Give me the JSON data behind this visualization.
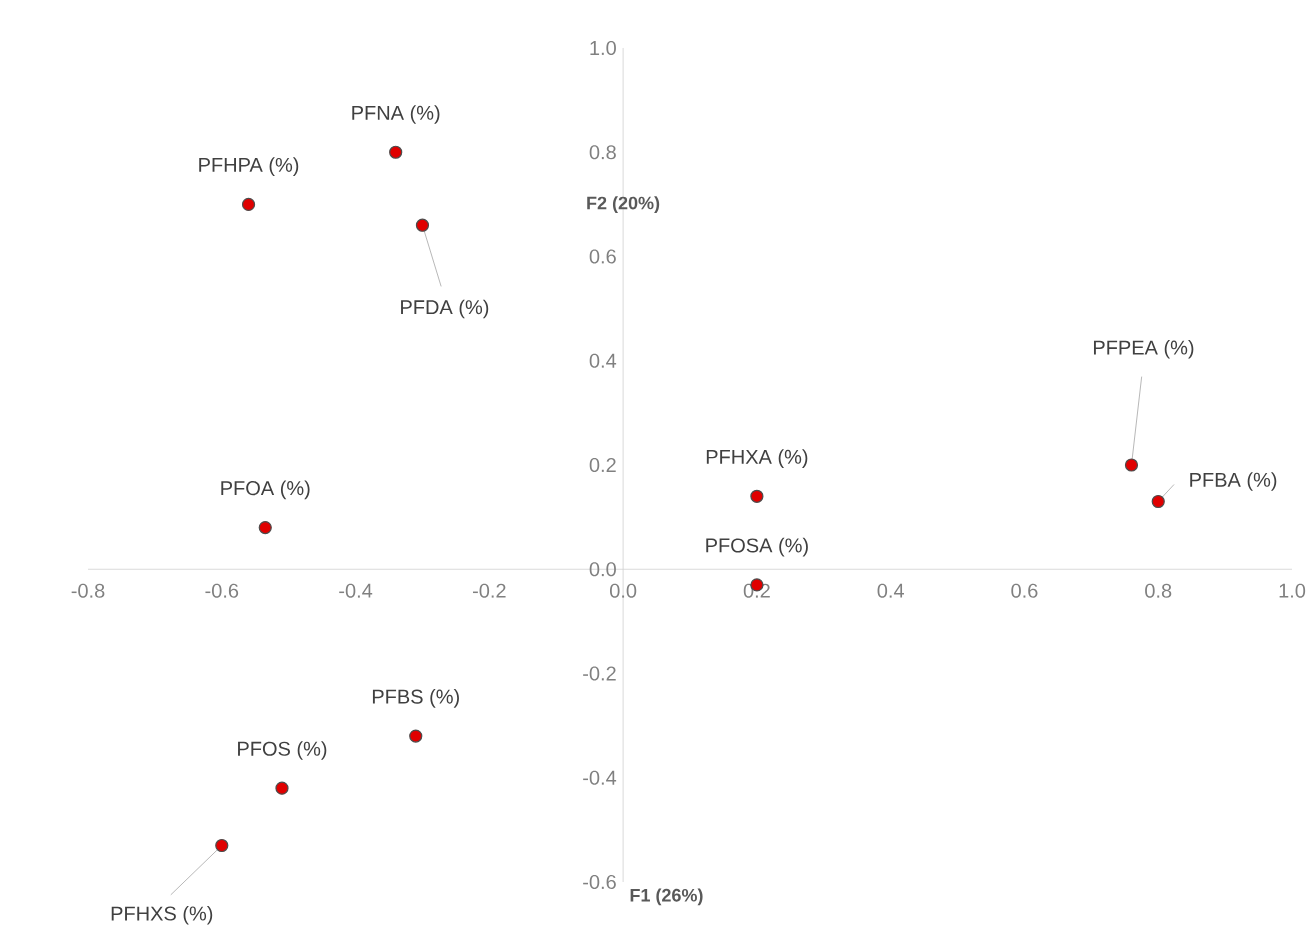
{
  "chart_data": {
    "type": "scatter",
    "xlabel": "F1 (26%)",
    "ylabel": "F2 (20%)",
    "xlim": [
      -0.8,
      1.0
    ],
    "ylim": [
      -0.6,
      1.0
    ],
    "xticks": [
      -0.8,
      -0.6,
      -0.4,
      -0.2,
      {
        "value": 0,
        "label": "0.0"
      },
      0.2,
      0.4,
      0.6,
      0.8,
      {
        "value": 1,
        "label": "1.0"
      }
    ],
    "yticks": [
      -0.6,
      -0.4,
      -0.2,
      {
        "value": 0,
        "label": "0.0"
      },
      0.2,
      0.4,
      0.6,
      0.8,
      {
        "value": 1,
        "label": "1.0"
      }
    ],
    "marker": "circle",
    "series": [
      {
        "name": "PFNA (%)",
        "color": "#e00000",
        "x": [
          -0.34
        ],
        "values": [
          0.8
        ]
      },
      {
        "name": "PFHPA (%)",
        "color": "#e00000",
        "x": [
          -0.56
        ],
        "values": [
          0.7
        ]
      },
      {
        "name": "PFDA (%)",
        "color": "#e00000",
        "x": [
          -0.3
        ],
        "values": [
          0.66
        ]
      },
      {
        "name": "PFOA (%)",
        "color": "#e00000",
        "x": [
          -0.535
        ],
        "values": [
          0.08
        ]
      },
      {
        "name": "PFHXA (%)",
        "color": "#e00000",
        "x": [
          0.2
        ],
        "values": [
          0.14
        ]
      },
      {
        "name": "PFOSA (%)",
        "color": "#e00000",
        "x": [
          0.2
        ],
        "values": [
          -0.03
        ]
      },
      {
        "name": "PFPEA (%)",
        "color": "#e00000",
        "x": [
          0.76
        ],
        "values": [
          0.2
        ]
      },
      {
        "name": "PFBA (%)",
        "color": "#e00000",
        "x": [
          0.8
        ],
        "values": [
          0.13
        ]
      },
      {
        "name": "PFBS (%)",
        "color": "#e00000",
        "x": [
          -0.31
        ],
        "values": [
          -0.32
        ]
      },
      {
        "name": "PFOS (%)",
        "color": "#e00000",
        "x": [
          -0.51
        ],
        "values": [
          -0.42
        ]
      },
      {
        "name": "PFHXS (%)",
        "color": "#e00000",
        "x": [
          -0.6
        ],
        "values": [
          -0.53
        ]
      }
    ]
  }
}
